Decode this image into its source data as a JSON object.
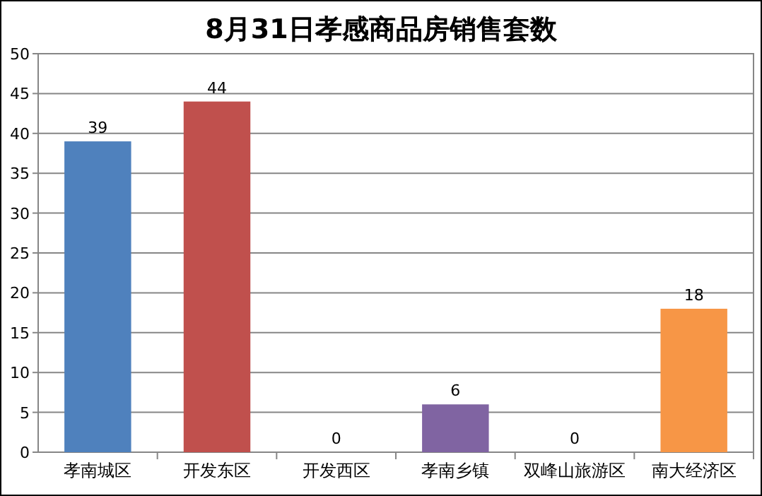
{
  "chart_data": {
    "type": "bar",
    "title": "8月31日孝感商品房销售套数",
    "categories": [
      "孝南城区",
      "开发东区",
      "开发西区",
      "孝南乡镇",
      "双峰山旅游区",
      "南大经济区"
    ],
    "values": [
      39,
      44,
      0,
      6,
      0,
      18
    ],
    "colors": [
      "#4f81bd",
      "#c0504d",
      "#9bbb59",
      "#8064a2",
      "#4bacc6",
      "#f79646"
    ],
    "ylim": [
      0,
      50
    ],
    "yticks": [
      0,
      5,
      10,
      15,
      20,
      25,
      30,
      35,
      40,
      45,
      50
    ],
    "grid": "y",
    "data_labels": true
  }
}
